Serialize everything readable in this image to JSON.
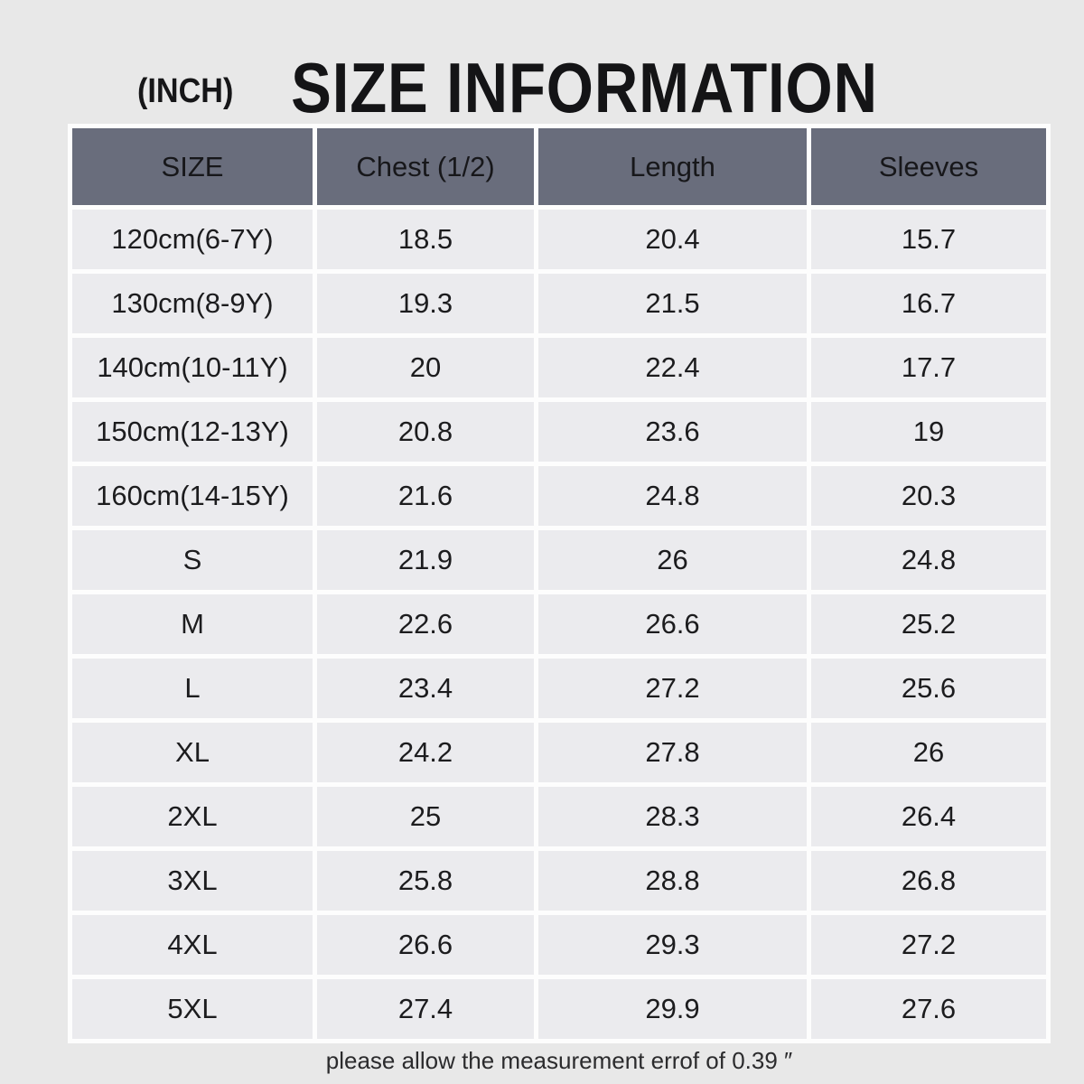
{
  "header": {
    "unit_label": "(INCH)",
    "title": "SIZE INFORMATION"
  },
  "footer": {
    "note": "please allow the measurement errof of 0.39 ″"
  },
  "chart_data": {
    "type": "table",
    "title": "SIZE INFORMATION",
    "unit": "INCH",
    "columns": [
      "SIZE",
      "Chest (1/2)",
      "Length",
      "Sleeves"
    ],
    "rows": [
      [
        "120cm(6-7Y)",
        18.5,
        20.4,
        15.7
      ],
      [
        "130cm(8-9Y)",
        19.3,
        21.5,
        16.7
      ],
      [
        "140cm(10-11Y)",
        20,
        22.4,
        17.7
      ],
      [
        "150cm(12-13Y)",
        20.8,
        23.6,
        19
      ],
      [
        "160cm(14-15Y)",
        21.6,
        24.8,
        20.3
      ],
      [
        "S",
        21.9,
        26,
        24.8
      ],
      [
        "M",
        22.6,
        26.6,
        25.2
      ],
      [
        "L",
        23.4,
        27.2,
        25.6
      ],
      [
        "XL",
        24.2,
        27.8,
        26
      ],
      [
        "2XL",
        25,
        28.3,
        26.4
      ],
      [
        "3XL",
        25.8,
        28.8,
        26.8
      ],
      [
        "4XL",
        26.6,
        29.3,
        27.2
      ],
      [
        "5XL",
        27.4,
        29.9,
        27.6
      ]
    ],
    "note": "please allow the measurement errof of 0.39 ″"
  },
  "colors": {
    "page_background": "#e8e8e8",
    "header_cell_background": "#696d7c",
    "body_cell_background": "#ebebee",
    "grid_gap": "#fdfdfd",
    "text": "#1a1a1c"
  }
}
